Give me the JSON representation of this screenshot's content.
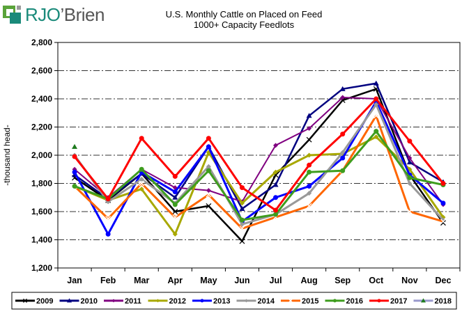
{
  "logo": {
    "text_prefix": "RJO",
    "text_suffix": "’Brien"
  },
  "chart_data": {
    "type": "line",
    "title": "U.S. Monthly Cattle on Placed on Feed",
    "subtitle": "1000+ Capacity Feedlots",
    "xlabel": "",
    "ylabel": "-thousand head-",
    "ylim": [
      1200,
      2800
    ],
    "yticks": [
      1200,
      1400,
      1600,
      1800,
      2000,
      2200,
      2400,
      2600,
      2800
    ],
    "ytick_labels": [
      "1,200",
      "1,400",
      "1,600",
      "1,800",
      "2,000",
      "2,200",
      "2,400",
      "2,600",
      "2,800"
    ],
    "grid": true,
    "legend_position": "bottom",
    "categories": [
      "Jan",
      "Feb",
      "Mar",
      "Apr",
      "May",
      "Jun",
      "Jul",
      "Aug",
      "Sep",
      "Oct",
      "Nov",
      "Dec"
    ],
    "series": [
      {
        "name": "2009",
        "color": "#000000",
        "marker": "x",
        "values": [
          1840,
          1680,
          1870,
          1600,
          1640,
          1390,
          1860,
          2110,
          2390,
          2470,
          1860,
          1520
        ]
      },
      {
        "name": "2010",
        "color": "#000080",
        "marker": "triangle",
        "values": [
          1860,
          1690,
          1870,
          1700,
          2060,
          1620,
          1790,
          2280,
          2470,
          2510,
          1950,
          1810
        ]
      },
      {
        "name": "2011",
        "color": "#800080",
        "marker": "diamond",
        "values": [
          1900,
          1700,
          1900,
          1770,
          1750,
          1670,
          2070,
          2190,
          2410,
          2400,
          1980,
          1650
        ]
      },
      {
        "name": "2012",
        "color": "#a8a800",
        "marker": "diamond",
        "values": [
          1780,
          1680,
          1760,
          1440,
          2020,
          1660,
          1880,
          2000,
          2010,
          2130,
          1900,
          1560
        ]
      },
      {
        "name": "2013",
        "color": "#0000ff",
        "marker": "circle",
        "values": [
          1880,
          1440,
          1880,
          1740,
          2060,
          1530,
          1700,
          1780,
          1980,
          2380,
          1860,
          1660
        ]
      },
      {
        "name": "2014",
        "color": "#999999",
        "marker": "diamond",
        "values": [
          2000,
          1670,
          1830,
          1660,
          1920,
          1510,
          1580,
          1730,
          2020,
          2360,
          1800,
          1540
        ]
      },
      {
        "name": "2015",
        "color": "#ff6600",
        "marker": "x",
        "values": [
          1780,
          1550,
          1800,
          1560,
          1720,
          1480,
          1560,
          1640,
          1890,
          2280,
          1600,
          1530
        ]
      },
      {
        "name": "2016",
        "color": "#3e9d1e",
        "marker": "circle",
        "values": [
          1780,
          1690,
          1900,
          1650,
          1890,
          1540,
          1580,
          1880,
          1890,
          2170,
          1840,
          1790
        ]
      },
      {
        "name": "2017",
        "color": "#ff0000",
        "marker": "circle",
        "values": [
          1990,
          1690,
          2120,
          1850,
          2120,
          1770,
          1610,
          1930,
          2150,
          2400,
          2100,
          1800
        ]
      },
      {
        "name": "2018",
        "color": "#9999cc",
        "marker": "triangle",
        "marker_color": "#1e7a1e",
        "values": [
          2060,
          null,
          null,
          null,
          null,
          null,
          null,
          null,
          null,
          null,
          null,
          null
        ]
      }
    ]
  }
}
